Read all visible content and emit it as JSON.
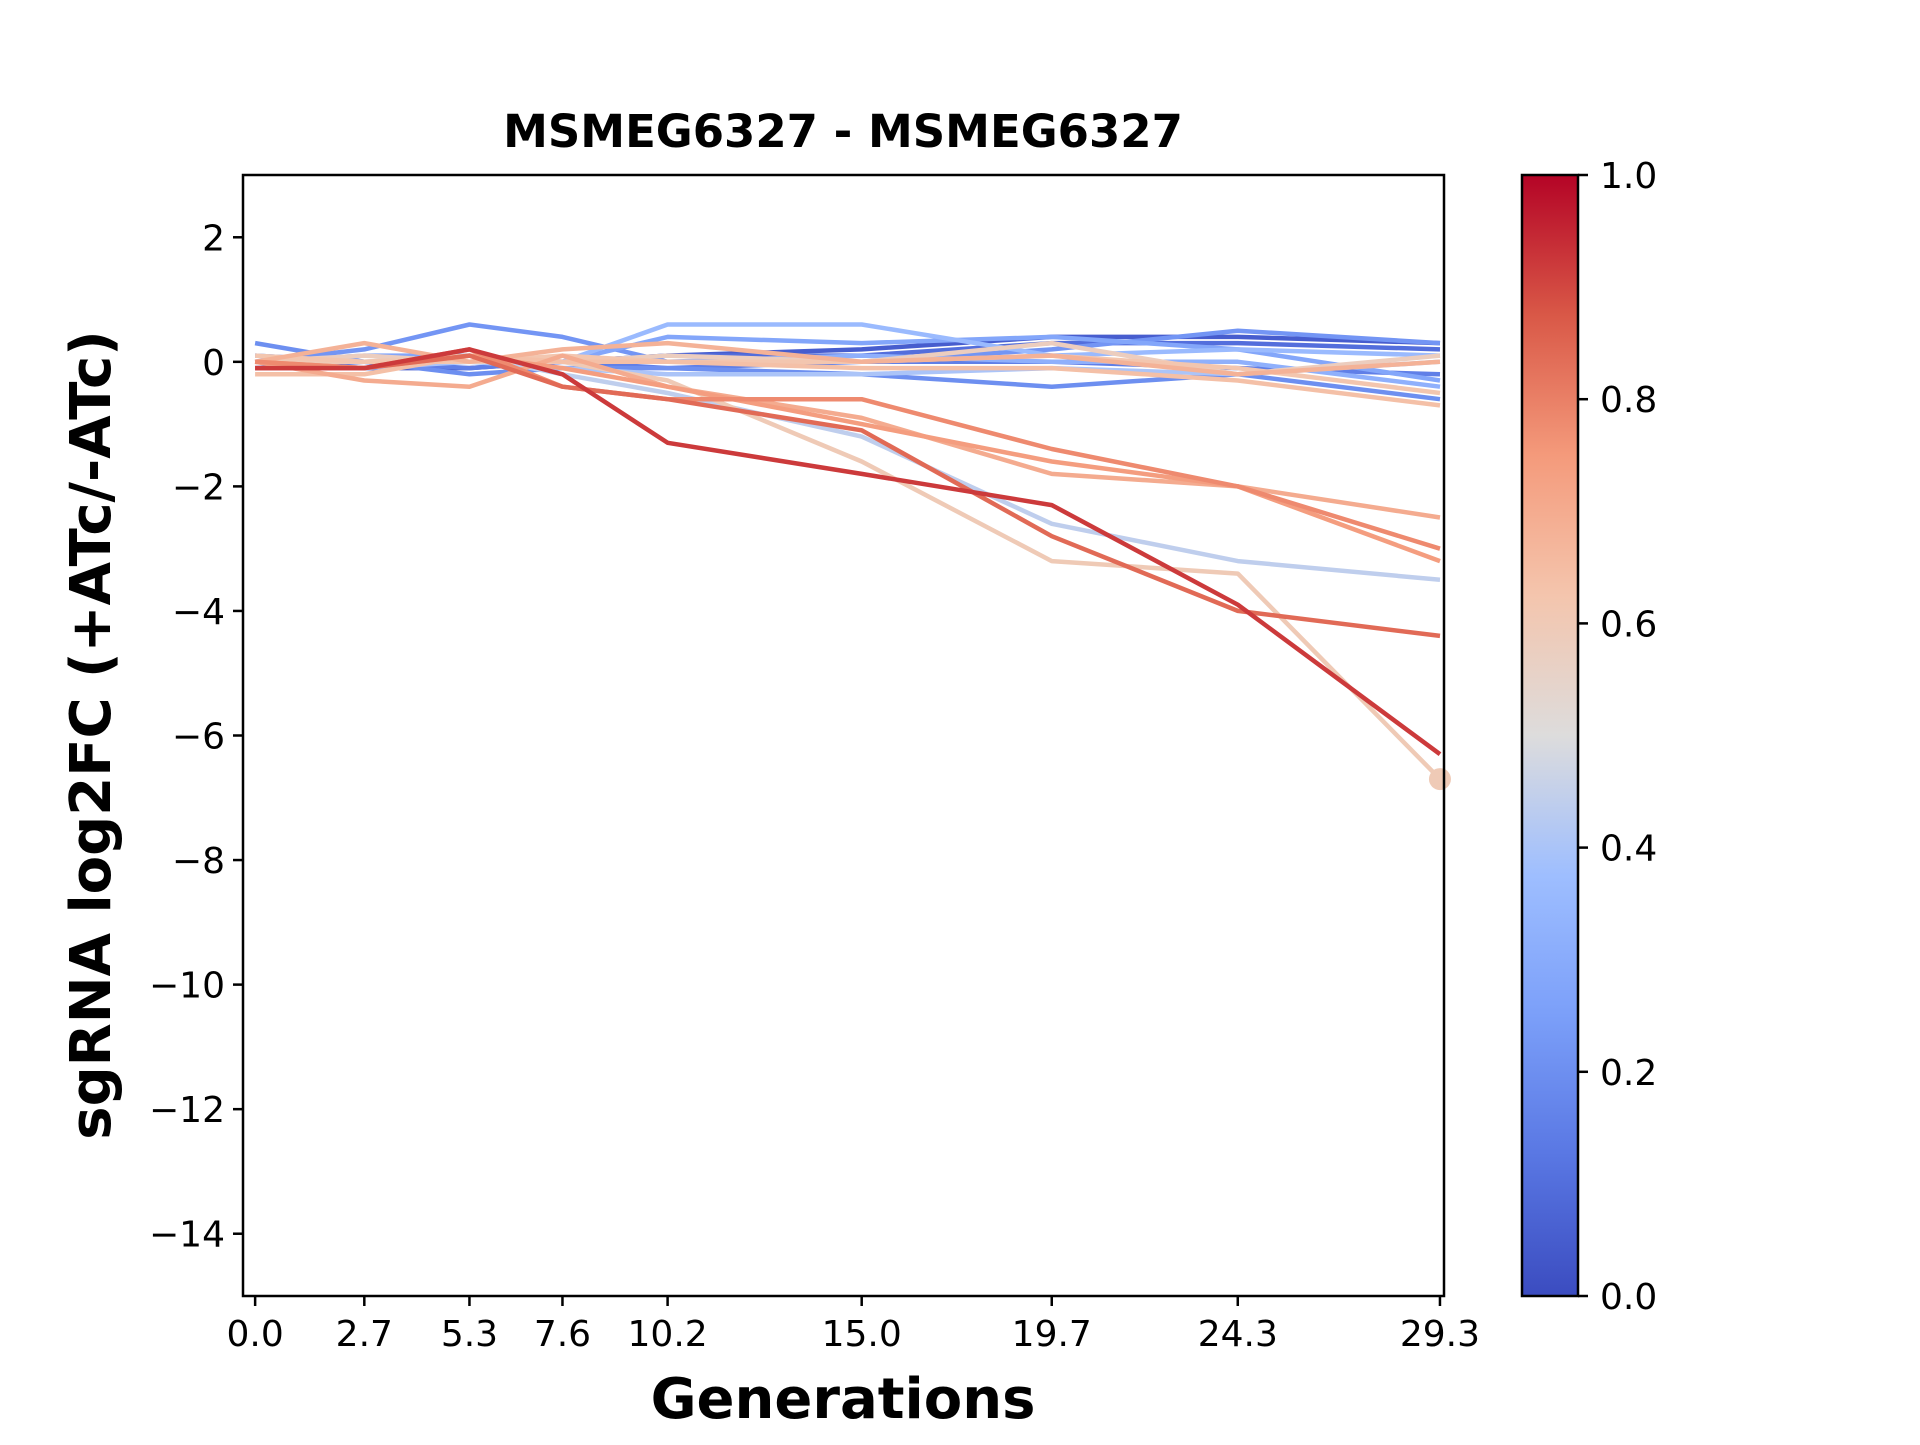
{
  "chart_data": {
    "type": "line",
    "title": "MSMEG6327 - MSMEG6327",
    "xlabel": "Generations",
    "ylabel": "sgRNA log2FC (+ATc/-ATc)",
    "xlim": [
      -0.3,
      29.4
    ],
    "ylim": [
      -15,
      3
    ],
    "x": [
      0.0,
      2.7,
      5.3,
      7.6,
      10.2,
      15.0,
      19.7,
      24.3,
      29.3
    ],
    "x_tick_labels": [
      "0.0",
      "2.7",
      "5.3",
      "7.6",
      "10.2",
      "15.0",
      "19.7",
      "24.3",
      "29.3"
    ],
    "y_ticks": [
      2,
      0,
      -2,
      -4,
      -6,
      -8,
      -10,
      -12,
      -14
    ],
    "y_tick_labels": [
      "2",
      "0",
      "−2",
      "−4",
      "−6",
      "−8",
      "−10",
      "−12",
      "−14"
    ],
    "grid": false,
    "colormap": "coolwarm",
    "colorbar": {
      "range": [
        0.0,
        1.0
      ],
      "tick_values": [
        0.0,
        0.2,
        0.4,
        0.6,
        0.8,
        1.0
      ],
      "tick_labels": [
        "0.0",
        "0.2",
        "0.4",
        "0.6",
        "0.8",
        "1.0"
      ]
    },
    "series": [
      {
        "color_value": 0.05,
        "values": [
          0.0,
          -0.1,
          -0.1,
          0.0,
          0.1,
          0.2,
          0.4,
          0.4,
          0.3
        ]
      },
      {
        "color_value": 0.1,
        "values": [
          -0.1,
          0.0,
          0.0,
          0.0,
          0.1,
          0.1,
          0.3,
          0.3,
          0.2
        ]
      },
      {
        "color_value": 0.15,
        "values": [
          0.1,
          0.0,
          -0.1,
          0.0,
          -0.1,
          0.0,
          0.0,
          -0.1,
          -0.2
        ]
      },
      {
        "color_value": 0.2,
        "values": [
          0.3,
          0.0,
          -0.2,
          -0.1,
          -0.1,
          -0.2,
          -0.4,
          -0.2,
          -0.6
        ]
      },
      {
        "color_value": 0.22,
        "values": [
          0.0,
          0.2,
          0.6,
          0.4,
          0.0,
          0.0,
          0.2,
          0.5,
          0.3
        ]
      },
      {
        "color_value": 0.28,
        "values": [
          0.0,
          0.1,
          0.1,
          0.0,
          0.4,
          0.3,
          0.4,
          0.2,
          -0.3
        ]
      },
      {
        "color_value": 0.32,
        "values": [
          0.0,
          0.0,
          0.0,
          0.0,
          0.0,
          0.1,
          0.0,
          0.0,
          -0.4
        ]
      },
      {
        "color_value": 0.36,
        "values": [
          0.1,
          0.0,
          0.0,
          0.0,
          0.6,
          0.6,
          0.1,
          0.2,
          0.1
        ]
      },
      {
        "color_value": 0.4,
        "values": [
          0.0,
          -0.1,
          0.0,
          -0.1,
          -0.2,
          -0.2,
          -0.1,
          -0.2,
          0.0
        ]
      },
      {
        "color_value": 0.44,
        "values": [
          0.0,
          0.0,
          0.1,
          -0.2,
          -0.5,
          -1.2,
          -2.6,
          -3.2,
          -3.5
        ]
      },
      {
        "color_value": 0.58,
        "values": [
          0.0,
          0.1,
          0.0,
          0.0,
          0.1,
          0.0,
          0.3,
          -0.2,
          0.1
        ]
      },
      {
        "color_value": 0.6,
        "values": [
          0.0,
          0.0,
          0.1,
          0.0,
          -0.3,
          -1.6,
          -3.2,
          -3.4,
          -6.7
        ]
      },
      {
        "color_value": 0.62,
        "values": [
          0.1,
          0.0,
          0.0,
          0.1,
          0.0,
          0.0,
          0.1,
          -0.1,
          -0.5
        ]
      },
      {
        "color_value": 0.64,
        "values": [
          -0.2,
          -0.2,
          0.1,
          0.0,
          0.0,
          -0.1,
          -0.1,
          -0.3,
          -0.7
        ]
      },
      {
        "color_value": 0.68,
        "values": [
          0.0,
          0.3,
          0.0,
          0.2,
          0.3,
          0.0,
          0.1,
          -0.2,
          0.0
        ]
      },
      {
        "color_value": 0.7,
        "values": [
          0.0,
          -0.3,
          -0.4,
          0.1,
          -0.4,
          -0.9,
          -1.8,
          -2.0,
          -2.5
        ]
      },
      {
        "color_value": 0.74,
        "values": [
          0.0,
          -0.1,
          0.1,
          -0.1,
          -0.4,
          -1.0,
          -1.6,
          -2.0,
          -3.2
        ]
      },
      {
        "color_value": 0.78,
        "values": [
          0.0,
          -0.1,
          0.2,
          -0.4,
          -0.6,
          -0.6,
          -1.4,
          -2.0,
          -3.0
        ]
      },
      {
        "color_value": 0.84,
        "values": [
          -0.1,
          -0.1,
          0.1,
          -0.4,
          -0.6,
          -1.1,
          -2.8,
          -4.0,
          -4.4
        ]
      },
      {
        "color_value": 0.92,
        "values": [
          -0.1,
          -0.1,
          0.2,
          -0.2,
          -1.3,
          -1.8,
          -2.3,
          -3.9,
          -6.3
        ]
      }
    ],
    "end_marker": {
      "x": 29.3,
      "y": -6.7,
      "color_value": 0.6
    }
  }
}
